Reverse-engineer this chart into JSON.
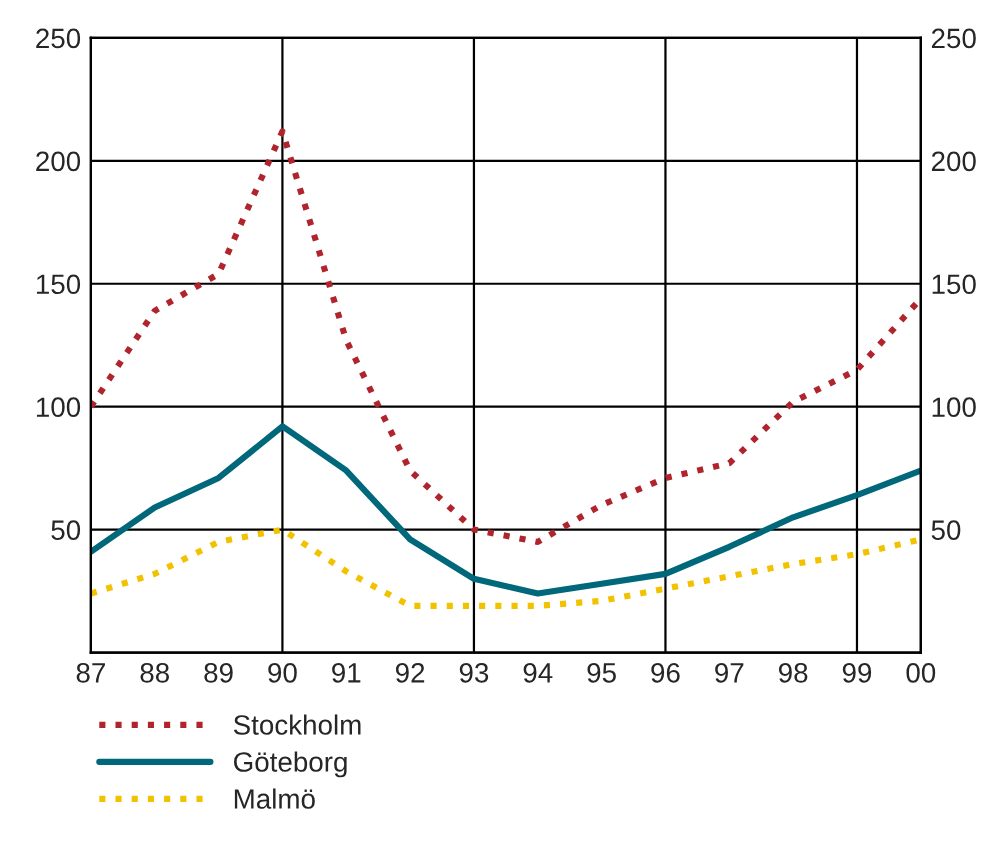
{
  "chart_data": {
    "type": "line",
    "x": [
      1987,
      1988,
      1989,
      1990,
      1991,
      1992,
      1993,
      1994,
      1995,
      1996,
      1997,
      1998,
      1999,
      2000
    ],
    "series": [
      {
        "name": "Stockholm",
        "color": "#b0242e",
        "line_style": "dotted",
        "values": [
          100,
          139,
          154,
          212,
          127,
          74,
          50,
          45,
          60,
          71,
          77,
          102,
          115,
          144
        ]
      },
      {
        "name": "Göteborg",
        "color": "#00687a",
        "line_style": "solid",
        "values": [
          41,
          59,
          71,
          92,
          74,
          46,
          30,
          24,
          28,
          32,
          43,
          55,
          64,
          74
        ]
      },
      {
        "name": "Malmö",
        "color": "#f2c200",
        "line_style": "dotted",
        "values": [
          24,
          32,
          45,
          50,
          33,
          19,
          19,
          19,
          21,
          26,
          31,
          36,
          40,
          46
        ]
      }
    ],
    "xlim": [
      1987,
      2000
    ],
    "xticks": [
      {
        "value": 1987,
        "label": "87"
      },
      {
        "value": 1988,
        "label": "88"
      },
      {
        "value": 1989,
        "label": "89"
      },
      {
        "value": 1990,
        "label": "90"
      },
      {
        "value": 1991,
        "label": "91"
      },
      {
        "value": 1992,
        "label": "92"
      },
      {
        "value": 1993,
        "label": "93"
      },
      {
        "value": 1994,
        "label": "94"
      },
      {
        "value": 1995,
        "label": "95"
      },
      {
        "value": 1996,
        "label": "96"
      },
      {
        "value": 1997,
        "label": "97"
      },
      {
        "value": 1998,
        "label": "98"
      },
      {
        "value": 1999,
        "label": "99"
      },
      {
        "value": 2000,
        "label": "00"
      }
    ],
    "ylim": [
      0,
      250
    ],
    "yticks": [
      50,
      100,
      150,
      200,
      250
    ],
    "y2lim": [
      0,
      250
    ],
    "y2ticks": [
      50,
      100,
      150,
      200,
      250
    ],
    "grid": "y",
    "ref_lines": [
      {
        "axis": "x",
        "value": 1990,
        "color": "#000000"
      },
      {
        "axis": "x",
        "value": 1993,
        "color": "#000000"
      },
      {
        "axis": "x",
        "value": 1996,
        "color": "#000000"
      },
      {
        "axis": "x",
        "value": 1999,
        "color": "#000000"
      }
    ],
    "legend": "bottom left"
  }
}
